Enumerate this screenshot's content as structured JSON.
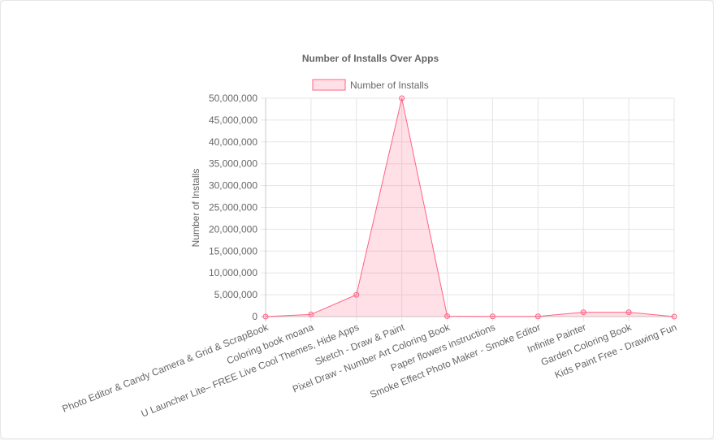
{
  "chart_data": {
    "type": "area",
    "title": "Number of Installs Over Apps",
    "ylabel": "Number of Installs",
    "xlabel": "",
    "ylim": [
      0,
      50000000
    ],
    "y_ticks": [
      "50,000,000",
      "45,000,000",
      "40,000,000",
      "35,000,000",
      "30,000,000",
      "25,000,000",
      "20,000,000",
      "15,000,000",
      "10,000,000",
      "5,000,000",
      "0"
    ],
    "grid": true,
    "legend_position": "top",
    "categories": [
      "Photo Editor & Candy Camera & Grid & ScrapBook",
      "Coloring book moana",
      "U Launcher Lite– FREE Live Cool Themes, Hide Apps",
      "Sketch - Draw & Paint",
      "Pixel Draw - Number Art Coloring Book",
      "Paper flowers instructions",
      "Smoke Effect Photo Maker - Smoke Editor",
      "Infinite Painter",
      "Garden Coloring Book",
      "Kids Paint Free - Drawing Fun"
    ],
    "series": [
      {
        "name": "Number of Installs",
        "values": [
          10000,
          500000,
          5000000,
          50000000,
          100000,
          50000,
          50000,
          1000000,
          1000000,
          10000
        ],
        "color": "#ff6384",
        "fill": "rgba(255,99,132,0.2)"
      }
    ]
  }
}
